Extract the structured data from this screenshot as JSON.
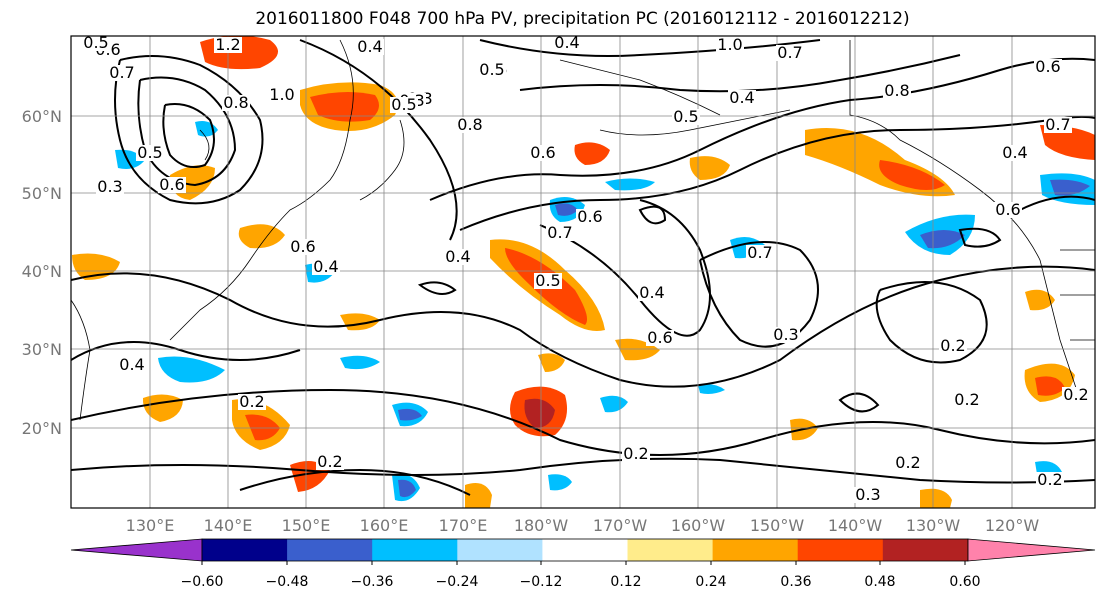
{
  "title": "2016011800 F048 700 hPa PV, precipitation PC (2016012112 - 2016012212)",
  "map": {
    "lat_labels": [
      "60°N",
      "50°N",
      "40°N",
      "30°N",
      "20°N"
    ],
    "lon_labels": [
      "130°E",
      "140°E",
      "150°E",
      "160°E",
      "170°E",
      "180°W",
      "170°W",
      "160°W",
      "150°W",
      "140°W",
      "130°W",
      "120°W"
    ],
    "contour_labels": [
      "1.2",
      "0.6",
      "0.7",
      "0.5",
      "0.8",
      "1.0",
      "0.4",
      "0.5",
      "0.3",
      "0.6",
      "0.4",
      "0.5",
      "0.8",
      "0.5",
      "0.4",
      "0.8",
      "0.7",
      "0.4",
      "0.6",
      "0.4",
      "0.6",
      "0.3",
      "0.3",
      "1.0",
      "0.7",
      "0.7",
      "0.6",
      "0.4",
      "0.5",
      "0.7",
      "0.6",
      "0.4",
      "0.6",
      "0.5",
      "0.5",
      "0.6",
      "0.2",
      "0.2",
      "0.4",
      "0.3",
      "0.2",
      "0.2",
      "0.2",
      "0.2",
      "0.2",
      "0.3",
      "0.2"
    ]
  },
  "colorbar": {
    "colors": [
      "#9932CC",
      "#00008B",
      "#3A5FCD",
      "#00BFFF",
      "#B0E2FF",
      "#FFFFFF",
      "#FFEC8B",
      "#FFA500",
      "#FF4500",
      "#B22222",
      "#FF82AB"
    ],
    "tick_labels": [
      "−0.60",
      "−0.48",
      "−0.36",
      "−0.24",
      "−0.12",
      "0.12",
      "0.24",
      "0.36",
      "0.48",
      "0.60"
    ]
  }
}
